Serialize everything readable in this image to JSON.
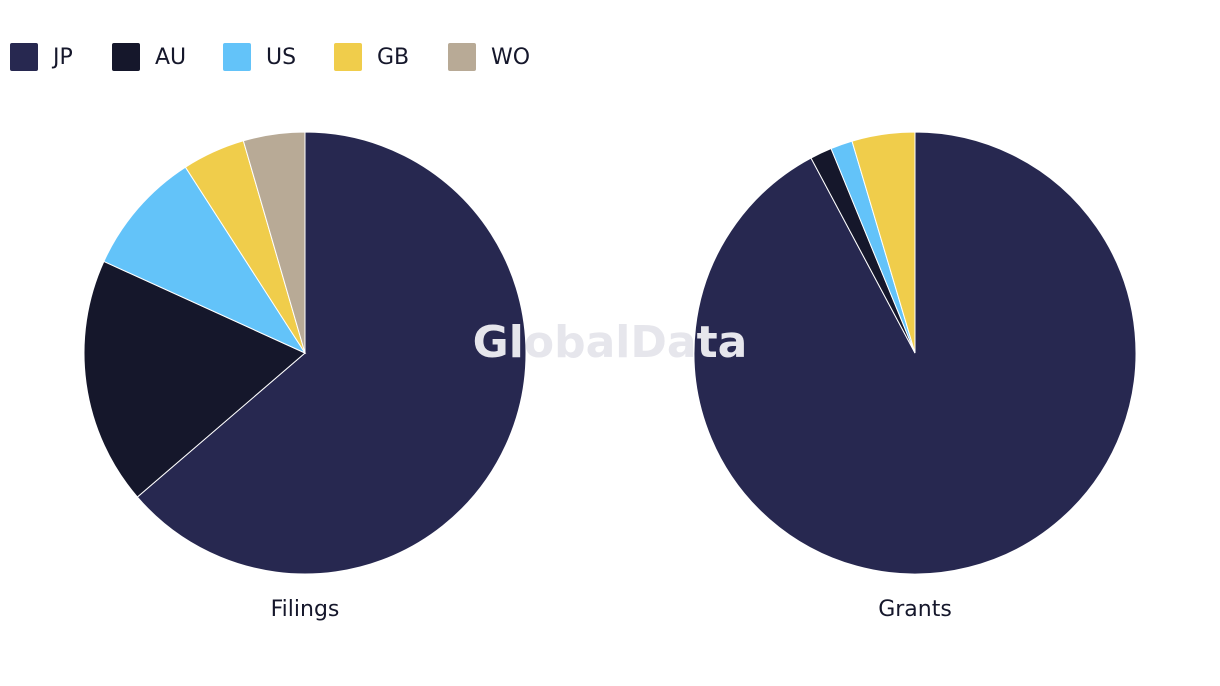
{
  "watermark": "GlobalData",
  "chart_data": [
    {
      "type": "pie",
      "title": "Filings",
      "categories": [
        "JP",
        "AU",
        "US",
        "GB",
        "WO"
      ],
      "colors": [
        "#272850",
        "#15172b",
        "#63c3f9",
        "#f0cd4b",
        "#b8aa96"
      ],
      "values": [
        63.7,
        18.1,
        9.1,
        4.6,
        4.5
      ]
    },
    {
      "type": "pie",
      "title": "Grants",
      "categories": [
        "JP",
        "AU",
        "US",
        "GB",
        "WO"
      ],
      "colors": [
        "#272850",
        "#15172b",
        "#63c3f9",
        "#f0cd4b",
        "#b8aa96"
      ],
      "values": [
        92.2,
        1.6,
        1.6,
        4.6,
        0
      ]
    }
  ]
}
